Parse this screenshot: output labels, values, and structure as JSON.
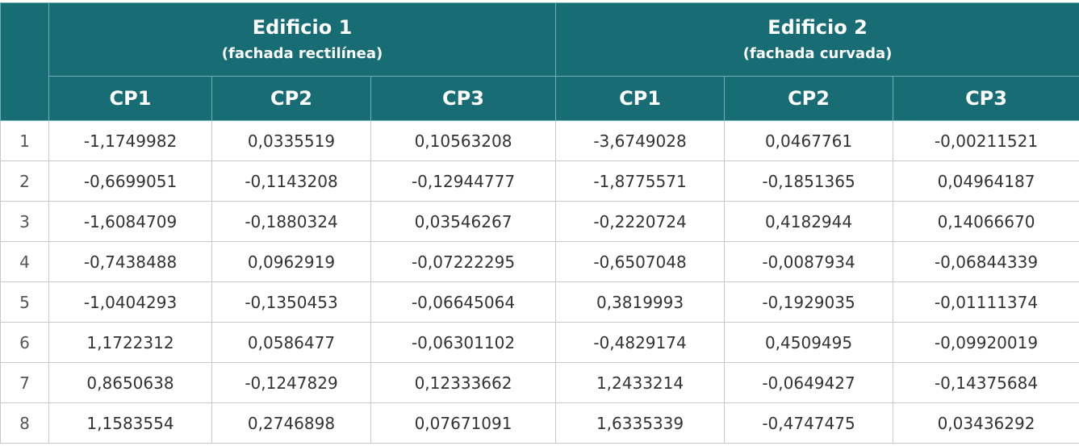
{
  "groups": [
    {
      "title": "Edificio 1",
      "subtitle": "(fachada rectilínea)"
    },
    {
      "title": "Edificio 2",
      "subtitle": "(fachada curvada)"
    }
  ],
  "columns": [
    "CP1",
    "CP2",
    "CP3",
    "CP1",
    "CP2",
    "CP3"
  ],
  "rows": [
    {
      "index": "1",
      "values": [
        "-1,1749982",
        "0,0335519",
        "0,10563208",
        "-3,6749028",
        "0,0467761",
        "-0,00211521"
      ]
    },
    {
      "index": "2",
      "values": [
        "-0,6699051",
        "-0,1143208",
        "-0,12944777",
        "-1,8775571",
        "-0,1851365",
        "0,04964187"
      ]
    },
    {
      "index": "3",
      "values": [
        "-1,6084709",
        "-0,1880324",
        "0,03546267",
        "-0,2220724",
        "0,4182944",
        "0,14066670"
      ]
    },
    {
      "index": "4",
      "values": [
        "-0,7438488",
        "0,0962919",
        "-0,07222295",
        "-0,6507048",
        "-0,0087934",
        "-0,06844339"
      ]
    },
    {
      "index": "5",
      "values": [
        "-1,0404293",
        "-0,1350453",
        "-0,06645064",
        "0,3819993",
        "-0,1929035",
        "-0,01111374"
      ]
    },
    {
      "index": "6",
      "values": [
        "1,1722312",
        "0,0586477",
        "-0,06301102",
        "-0,4829174",
        "0,4509495",
        "-0,09920019"
      ]
    },
    {
      "index": "7",
      "values": [
        "0,8650638",
        "-0,1247829",
        "0,12333662",
        "1,2433214",
        "-0,0649427",
        "-0,14375684"
      ]
    },
    {
      "index": "8",
      "values": [
        "1,1583554",
        "0,2746898",
        "0,07671091",
        "1,6335339",
        "-0,4747475",
        "0,03436292"
      ]
    }
  ],
  "colors": {
    "header_bg": "#176d73",
    "header_text": "#ffffff",
    "grid": "#c9c9c9"
  }
}
